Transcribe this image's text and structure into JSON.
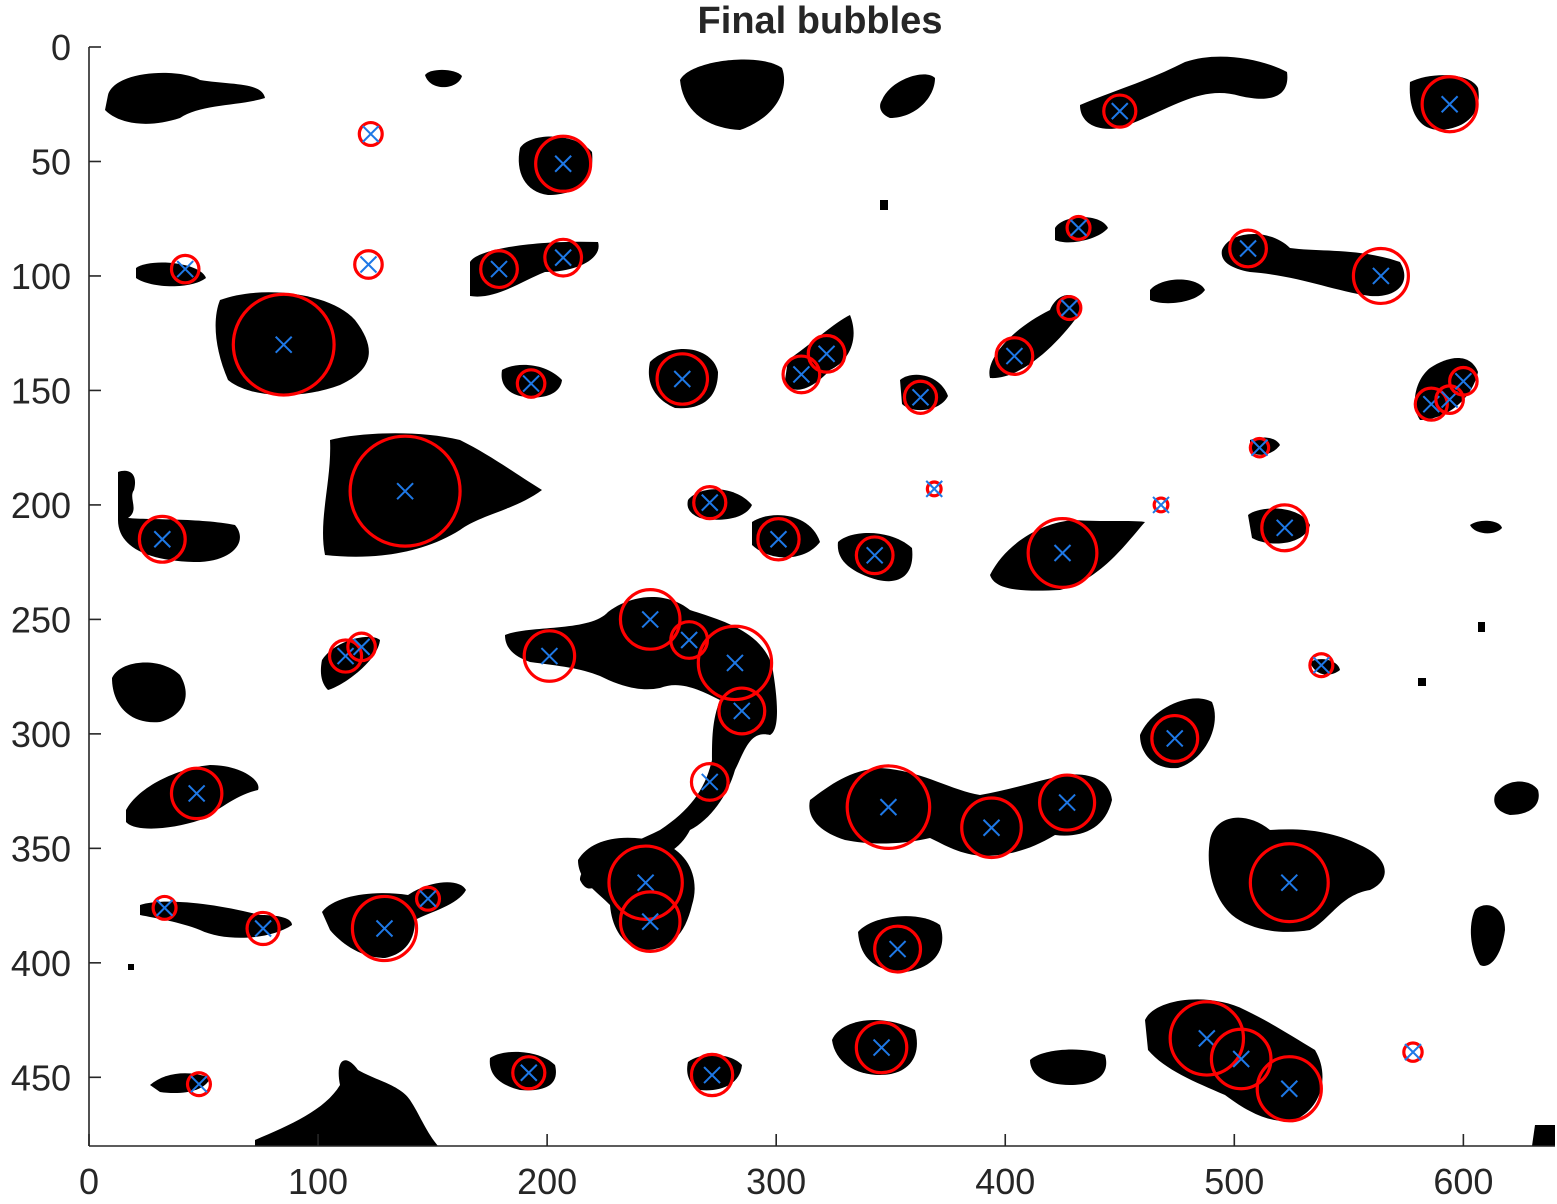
{
  "chart_data": {
    "type": "scatter",
    "title": "Final bubbles",
    "xlabel": "",
    "ylabel": "",
    "xlim": [
      0,
      640
    ],
    "ylim": [
      0,
      480
    ],
    "y_reversed": true,
    "x_ticks": [
      0,
      100,
      200,
      300,
      400,
      500,
      600
    ],
    "y_ticks": [
      0,
      50,
      100,
      150,
      200,
      250,
      300,
      350,
      400,
      450
    ],
    "grid": false,
    "legend": "none",
    "colors": {
      "circle": "#ff0000",
      "center": "#1e78e6",
      "blob": "#000000",
      "axis": "#262626"
    },
    "series": [
      {
        "marker": "x-with-circle",
        "points": [
          {
            "x": 123,
            "y": 38,
            "r": 5
          },
          {
            "x": 207,
            "y": 51,
            "r": 12
          },
          {
            "x": 450,
            "y": 28,
            "r": 7
          },
          {
            "x": 594,
            "y": 25,
            "r": 12
          },
          {
            "x": 42,
            "y": 97,
            "r": 6
          },
          {
            "x": 122,
            "y": 95,
            "r": 6
          },
          {
            "x": 179,
            "y": 97,
            "r": 8
          },
          {
            "x": 207,
            "y": 92,
            "r": 8
          },
          {
            "x": 432,
            "y": 79,
            "r": 5
          },
          {
            "x": 506,
            "y": 88,
            "r": 8
          },
          {
            "x": 564,
            "y": 100,
            "r": 12
          },
          {
            "x": 428,
            "y": 114,
            "r": 5
          },
          {
            "x": 85,
            "y": 130,
            "r": 22
          },
          {
            "x": 193,
            "y": 147,
            "r": 6
          },
          {
            "x": 259,
            "y": 145,
            "r": 11
          },
          {
            "x": 311,
            "y": 143,
            "r": 8
          },
          {
            "x": 322,
            "y": 134,
            "r": 8
          },
          {
            "x": 363,
            "y": 153,
            "r": 7
          },
          {
            "x": 404,
            "y": 135,
            "r": 8
          },
          {
            "x": 586,
            "y": 156,
            "r": 7
          },
          {
            "x": 594,
            "y": 154,
            "r": 6
          },
          {
            "x": 600,
            "y": 146,
            "r": 6
          },
          {
            "x": 511,
            "y": 175,
            "r": 4
          },
          {
            "x": 138,
            "y": 194,
            "r": 24
          },
          {
            "x": 32,
            "y": 215,
            "r": 10
          },
          {
            "x": 271,
            "y": 199,
            "r": 7
          },
          {
            "x": 301,
            "y": 215,
            "r": 9
          },
          {
            "x": 343,
            "y": 222,
            "r": 8
          },
          {
            "x": 369,
            "y": 193,
            "r": 3
          },
          {
            "x": 468,
            "y": 200,
            "r": 3
          },
          {
            "x": 425,
            "y": 221,
            "r": 15
          },
          {
            "x": 522,
            "y": 210,
            "r": 10
          },
          {
            "x": 112,
            "y": 266,
            "r": 7
          },
          {
            "x": 119,
            "y": 262,
            "r": 6
          },
          {
            "x": 201,
            "y": 266,
            "r": 11
          },
          {
            "x": 245,
            "y": 250,
            "r": 13
          },
          {
            "x": 262,
            "y": 259,
            "r": 8
          },
          {
            "x": 282,
            "y": 269,
            "r": 16
          },
          {
            "x": 285,
            "y": 290,
            "r": 10
          },
          {
            "x": 538,
            "y": 270,
            "r": 5
          },
          {
            "x": 474,
            "y": 302,
            "r": 10
          },
          {
            "x": 47,
            "y": 326,
            "r": 11
          },
          {
            "x": 271,
            "y": 321,
            "r": 8
          },
          {
            "x": 349,
            "y": 332,
            "r": 18
          },
          {
            "x": 394,
            "y": 341,
            "r": 13
          },
          {
            "x": 427,
            "y": 330,
            "r": 12
          },
          {
            "x": 243,
            "y": 365,
            "r": 16
          },
          {
            "x": 245,
            "y": 382,
            "r": 13
          },
          {
            "x": 524,
            "y": 365,
            "r": 17
          },
          {
            "x": 33,
            "y": 376,
            "r": 5
          },
          {
            "x": 76,
            "y": 385,
            "r": 7
          },
          {
            "x": 129,
            "y": 385,
            "r": 14
          },
          {
            "x": 148,
            "y": 372,
            "r": 5
          },
          {
            "x": 353,
            "y": 394,
            "r": 10
          },
          {
            "x": 346,
            "y": 437,
            "r": 11
          },
          {
            "x": 488,
            "y": 433,
            "r": 16
          },
          {
            "x": 503,
            "y": 442,
            "r": 13
          },
          {
            "x": 524,
            "y": 455,
            "r": 14
          },
          {
            "x": 578,
            "y": 439,
            "r": 4
          },
          {
            "x": 48,
            "y": 453,
            "r": 5
          },
          {
            "x": 192,
            "y": 448,
            "r": 7
          },
          {
            "x": 272,
            "y": 449,
            "r": 9
          }
        ]
      }
    ]
  }
}
